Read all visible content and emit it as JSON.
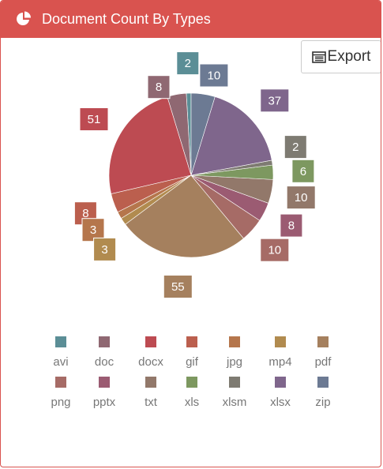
{
  "header": {
    "title": "Document Count By Types",
    "icon": "pie-chart-icon",
    "background": "#d9534f"
  },
  "toolbar": {
    "export_label": "Export",
    "export_icon": "table-list-icon"
  },
  "chart_data": {
    "type": "pie",
    "title": "",
    "legend_position": "bottom",
    "start_angle_deg": 90,
    "direction": "counterclockwise",
    "slices": [
      {
        "label": "avi",
        "value": 2,
        "color": "#5b8e96"
      },
      {
        "label": "doc",
        "value": 8,
        "color": "#8f6872"
      },
      {
        "label": "docx",
        "value": 51,
        "color": "#bd4b52"
      },
      {
        "label": "gif",
        "value": 8,
        "color": "#bb5f4e"
      },
      {
        "label": "jpg",
        "value": 3,
        "color": "#b5764c"
      },
      {
        "label": "mp4",
        "value": 3,
        "color": "#b18b4f"
      },
      {
        "label": "pdf",
        "value": 55,
        "color": "#a5805e"
      },
      {
        "label": "png",
        "value": 10,
        "color": "#a66b66"
      },
      {
        "label": "pptx",
        "value": 8,
        "color": "#9b5b72"
      },
      {
        "label": "txt",
        "value": 10,
        "color": "#92786a"
      },
      {
        "label": "xls",
        "value": 6,
        "color": "#7d9860"
      },
      {
        "label": "xlsm",
        "value": 2,
        "color": "#7e7b72"
      },
      {
        "label": "xlsx",
        "value": 37,
        "color": "#7f668c"
      },
      {
        "label": "zip",
        "value": 10,
        "color": "#6c7a93"
      }
    ]
  }
}
